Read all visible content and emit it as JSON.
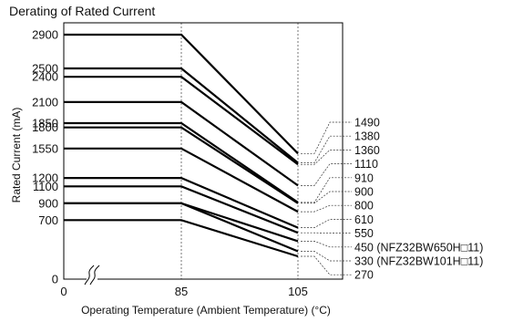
{
  "chart_data": {
    "type": "line",
    "title": "Derating of Rated Current",
    "xlabel": "Operating Temperature (Ambient Temperature) (°C)",
    "ylabel": "Rated Current (mA)",
    "x": [
      0,
      85,
      105
    ],
    "x_ticks": [
      "0",
      "85",
      "105"
    ],
    "y_ticks": [
      "0",
      "700",
      "900",
      "1100",
      "1200",
      "1550",
      "1800",
      "1850",
      "2100",
      "2400",
      "2500",
      "2900"
    ],
    "xlim": [
      0,
      105
    ],
    "ylim": [
      0,
      2900
    ],
    "axis_break": true,
    "series": [
      {
        "values": [
          2900,
          2900,
          1490
        ],
        "label": "1490"
      },
      {
        "values": [
          2500,
          2500,
          1380
        ],
        "label": "1380"
      },
      {
        "values": [
          2400,
          2400,
          1360
        ],
        "label": "1360"
      },
      {
        "values": [
          2100,
          2100,
          1110
        ],
        "label": "1110"
      },
      {
        "values": [
          1850,
          1850,
          910
        ],
        "label": "910"
      },
      {
        "values": [
          1800,
          1800,
          900
        ],
        "label": "900"
      },
      {
        "values": [
          1550,
          1550,
          800
        ],
        "label": "800"
      },
      {
        "values": [
          1200,
          1200,
          610
        ],
        "label": "610"
      },
      {
        "values": [
          1100,
          1100,
          550
        ],
        "label": "550"
      },
      {
        "values": [
          900,
          900,
          450
        ],
        "label": "450 (NFZ32BW650H□11)"
      },
      {
        "values": [
          900,
          900,
          330
        ],
        "label": "330 (NFZ32BW101H□11)"
      },
      {
        "values": [
          700,
          700,
          270
        ],
        "label": "270"
      }
    ]
  }
}
